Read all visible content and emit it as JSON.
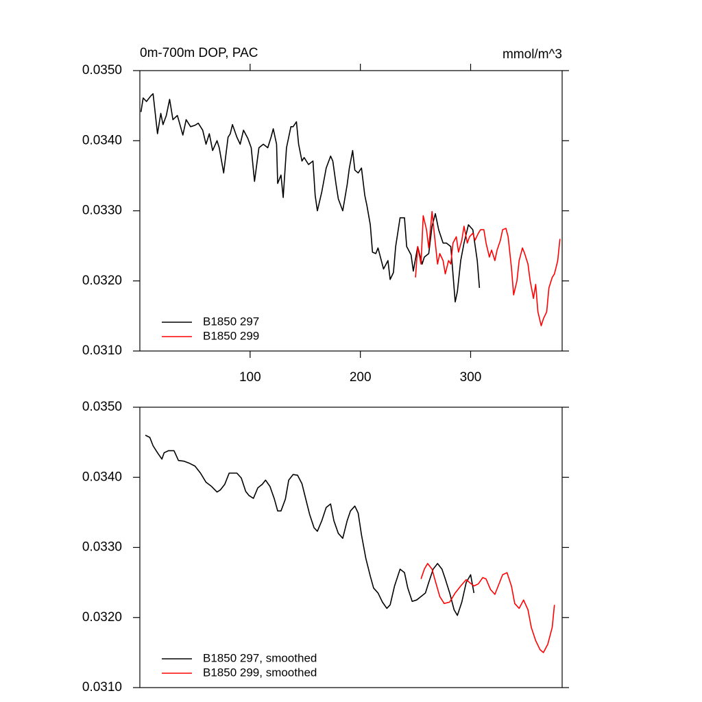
{
  "chart_data": [
    {
      "type": "line",
      "title": "0m-700m DOP, PAC",
      "units": "mmol/m^3",
      "xlim": [
        0,
        383
      ],
      "xticks": [
        100,
        200,
        300
      ],
      "ylim": [
        0.031,
        0.035
      ],
      "yticks": [
        {
          "value": 0.031,
          "label": "0.0310"
        },
        {
          "value": 0.032,
          "label": "0.0320"
        },
        {
          "value": 0.033,
          "label": "0.0330"
        },
        {
          "value": 0.034,
          "label": "0.0340"
        },
        {
          "value": 0.035,
          "label": "0.0350"
        }
      ],
      "legend": "lower left",
      "series": [
        {
          "name": "B1850 297",
          "color": "#000000",
          "x": [
            1,
            3,
            6,
            10,
            12,
            16,
            19,
            21,
            24,
            27,
            30,
            34,
            36,
            39,
            42,
            46,
            50,
            53,
            57,
            60,
            63,
            66,
            70,
            72,
            76,
            80,
            82,
            84,
            88,
            91,
            94,
            98,
            101,
            104,
            108,
            112,
            116,
            119,
            121,
            124,
            125,
            128,
            130,
            133,
            137,
            139,
            142,
            144,
            147,
            149,
            153,
            157,
            159,
            161,
            165,
            169,
            173,
            175,
            178,
            180,
            184,
            188,
            190,
            193,
            195,
            198,
            201,
            204,
            206,
            209,
            211,
            214,
            216,
            219,
            221,
            225,
            227,
            230,
            232,
            236,
            240,
            242,
            246,
            248,
            252,
            256,
            258,
            262,
            265,
            268,
            271,
            275,
            278,
            282,
            286,
            288,
            291,
            294,
            298,
            302,
            306,
            308
          ],
          "values": [
            0.03441,
            0.03461,
            0.03456,
            0.03464,
            0.03467,
            0.0341,
            0.03439,
            0.03423,
            0.03436,
            0.03459,
            0.0343,
            0.03436,
            0.03425,
            0.03408,
            0.0343,
            0.0342,
            0.03422,
            0.03425,
            0.03415,
            0.03395,
            0.0341,
            0.03386,
            0.034,
            0.0339,
            0.03354,
            0.03405,
            0.0341,
            0.03423,
            0.03405,
            0.03395,
            0.03415,
            0.03403,
            0.0339,
            0.03342,
            0.0339,
            0.03395,
            0.0339,
            0.03405,
            0.03417,
            0.03395,
            0.03339,
            0.03351,
            0.03319,
            0.0339,
            0.0342,
            0.0342,
            0.03427,
            0.03395,
            0.03371,
            0.03376,
            0.03366,
            0.03371,
            0.03322,
            0.033,
            0.03327,
            0.03361,
            0.03378,
            0.03371,
            0.03337,
            0.03317,
            0.033,
            0.03337,
            0.03361,
            0.03386,
            0.03358,
            0.03354,
            0.03361,
            0.03322,
            0.03307,
            0.0328,
            0.03241,
            0.03239,
            0.03247,
            0.03229,
            0.03217,
            0.03229,
            0.03202,
            0.03212,
            0.03249,
            0.0329,
            0.0329,
            0.03249,
            0.03237,
            0.03214,
            0.03249,
            0.03224,
            0.03234,
            0.03239,
            0.03278,
            0.03296,
            0.03273,
            0.03254,
            0.03254,
            0.03249,
            0.0317,
            0.03185,
            0.03229,
            0.03254,
            0.0328,
            0.03273,
            0.03229,
            0.0319
          ]
        },
        {
          "name": "B1850 299",
          "color": "#ff0000",
          "x": [
            250,
            252,
            255,
            257,
            260,
            262,
            265,
            267,
            270,
            272,
            275,
            277,
            280,
            282,
            284,
            287,
            289,
            292,
            294,
            297,
            299,
            302,
            304,
            307,
            309,
            312,
            314,
            317,
            319,
            322,
            324,
            327,
            329,
            332,
            334,
            337,
            339,
            342,
            344,
            347,
            349,
            352,
            354,
            357,
            359,
            361,
            364,
            366,
            369,
            371,
            374,
            376,
            379,
            381
          ],
          "values": [
            0.03205,
            0.03249,
            0.03224,
            0.03293,
            0.03273,
            0.03247,
            0.03299,
            0.03268,
            0.03224,
            0.03239,
            0.03229,
            0.0321,
            0.03229,
            0.03224,
            0.03254,
            0.03263,
            0.03241,
            0.03258,
            0.03278,
            0.03254,
            0.03263,
            0.03268,
            0.03258,
            0.03268,
            0.03273,
            0.03273,
            0.03254,
            0.03234,
            0.03244,
            0.03229,
            0.03244,
            0.03258,
            0.03273,
            0.03275,
            0.03263,
            0.03219,
            0.0318,
            0.032,
            0.03229,
            0.03247,
            0.03239,
            0.03224,
            0.032,
            0.03175,
            0.03195,
            0.03156,
            0.03136,
            0.03146,
            0.03156,
            0.0319,
            0.03205,
            0.0321,
            0.03229,
            0.0326
          ]
        }
      ]
    },
    {
      "type": "line",
      "xlim": [
        0,
        383
      ],
      "ylim": [
        0.031,
        0.035
      ],
      "yticks": [
        {
          "value": 0.031,
          "label": "0.0310"
        },
        {
          "value": 0.032,
          "label": "0.0320"
        },
        {
          "value": 0.033,
          "label": "0.0330"
        },
        {
          "value": 0.034,
          "label": "0.0340"
        },
        {
          "value": 0.035,
          "label": "0.0350"
        }
      ],
      "legend": "lower left",
      "series": [
        {
          "name": "B1850 297, smoothed",
          "color": "#000000",
          "x": [
            5,
            9,
            12,
            16,
            20,
            22,
            26,
            31,
            35,
            40,
            45,
            50,
            55,
            60,
            65,
            70,
            73,
            77,
            81,
            84,
            88,
            92,
            96,
            99,
            103,
            107,
            111,
            114,
            118,
            122,
            125,
            128,
            132,
            135,
            139,
            143,
            147,
            150,
            154,
            158,
            161,
            165,
            169,
            173,
            176,
            180,
            184,
            188,
            191,
            195,
            198,
            201,
            205,
            209,
            212,
            216,
            220,
            224,
            227,
            231,
            236,
            240,
            243,
            247,
            251,
            255,
            259,
            262,
            266,
            270,
            274,
            277,
            281,
            285,
            288,
            292,
            296,
            300,
            303
          ],
          "values": [
            0.0346,
            0.03457,
            0.03445,
            0.03435,
            0.03426,
            0.03435,
            0.03438,
            0.03438,
            0.03424,
            0.03423,
            0.0342,
            0.03416,
            0.03406,
            0.03393,
            0.03387,
            0.03379,
            0.03382,
            0.0339,
            0.03406,
            0.03406,
            0.03406,
            0.03399,
            0.0338,
            0.03374,
            0.0337,
            0.03385,
            0.0339,
            0.03396,
            0.03387,
            0.03369,
            0.03352,
            0.03352,
            0.03369,
            0.03396,
            0.03404,
            0.03403,
            0.03391,
            0.03372,
            0.03347,
            0.03328,
            0.03323,
            0.03338,
            0.03357,
            0.03362,
            0.03338,
            0.0332,
            0.03313,
            0.03338,
            0.03352,
            0.03359,
            0.03349,
            0.03318,
            0.03284,
            0.03259,
            0.03242,
            0.03235,
            0.03222,
            0.03213,
            0.03218,
            0.03245,
            0.03269,
            0.03264,
            0.03242,
            0.03223,
            0.03225,
            0.0323,
            0.03235,
            0.0325,
            0.03269,
            0.03277,
            0.03269,
            0.03255,
            0.03235,
            0.03211,
            0.03203,
            0.03222,
            0.0325,
            0.03261,
            0.03235
          ]
        },
        {
          "name": "B1850 299, smoothed",
          "color": "#ff0000",
          "x": [
            255,
            258,
            261,
            265,
            268,
            272,
            276,
            281,
            286,
            291,
            296,
            299,
            303,
            307,
            311,
            314,
            318,
            322,
            325,
            329,
            333,
            337,
            340,
            344,
            348,
            352,
            355,
            359,
            363,
            366,
            370,
            374,
            376
          ],
          "values": [
            0.03255,
            0.03269,
            0.03277,
            0.03269,
            0.03252,
            0.0323,
            0.0322,
            0.03222,
            0.03235,
            0.03245,
            0.03254,
            0.0325,
            0.03245,
            0.03248,
            0.03257,
            0.03255,
            0.0324,
            0.03233,
            0.03245,
            0.03261,
            0.03264,
            0.03245,
            0.0322,
            0.03213,
            0.03225,
            0.03211,
            0.03186,
            0.03167,
            0.03154,
            0.0315,
            0.03162,
            0.03186,
            0.03218
          ]
        }
      ]
    }
  ]
}
